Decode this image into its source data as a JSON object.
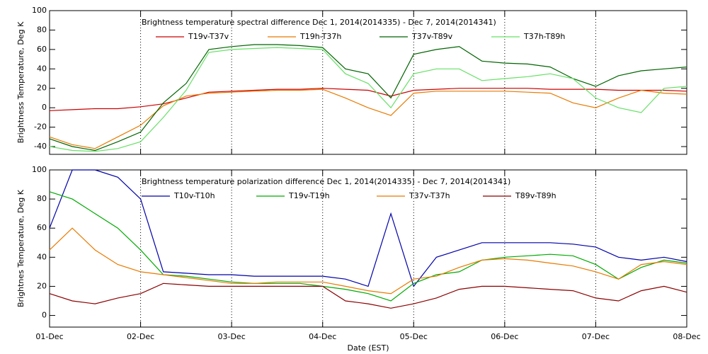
{
  "chart_data": [
    {
      "type": "line",
      "title": "Brightness temperature spectral difference    Dec  1, 2014(2014335) - Dec  7, 2014(2014341)",
      "ylabel": "Brightness Temperature, Deg K",
      "x": [
        0,
        0.25,
        0.5,
        0.75,
        1,
        1.25,
        1.5,
        1.75,
        2,
        2.25,
        2.5,
        2.75,
        3,
        3.25,
        3.5,
        3.75,
        4,
        4.25,
        4.5,
        4.75,
        5,
        5.25,
        5.5,
        5.75,
        6,
        6.25,
        6.5,
        6.75,
        7
      ],
      "xlim": [
        0,
        7
      ],
      "xticks": [
        0,
        1,
        2,
        3,
        4,
        5,
        6,
        7
      ],
      "ylim": [
        -48,
        100
      ],
      "yticks": [
        -40,
        -20,
        0,
        20,
        40,
        60,
        80,
        100
      ],
      "grid": true,
      "legend": "top",
      "series": [
        {
          "name": "T19v-T37v",
          "color": "#cc0000",
          "values": [
            -3,
            -2,
            -1,
            -1,
            1,
            4,
            10,
            16,
            17,
            18,
            19,
            19,
            20,
            19,
            18,
            12,
            18,
            19,
            20,
            20,
            20,
            20,
            19,
            19,
            19,
            18,
            18,
            18,
            17
          ]
        },
        {
          "name": "T19h-T37h",
          "color": "#e87a00",
          "values": [
            -30,
            -38,
            -42,
            -30,
            -18,
            2,
            12,
            15,
            16,
            17,
            18,
            18,
            19,
            10,
            0,
            -8,
            15,
            17,
            17,
            17,
            17,
            16,
            15,
            5,
            0,
            10,
            18,
            15,
            14
          ]
        },
        {
          "name": "T37v-T89v",
          "color": "#006400",
          "values": [
            -32,
            -40,
            -44,
            -35,
            -25,
            5,
            25,
            60,
            63,
            65,
            65,
            64,
            62,
            40,
            35,
            10,
            55,
            60,
            63,
            48,
            46,
            45,
            42,
            30,
            22,
            33,
            38,
            40,
            42
          ]
        },
        {
          "name": "T37h-T89h",
          "color": "#66e066",
          "values": [
            -40,
            -44,
            -45,
            -42,
            -35,
            -10,
            18,
            57,
            60,
            61,
            62,
            61,
            60,
            35,
            25,
            0,
            35,
            40,
            40,
            28,
            30,
            32,
            35,
            30,
            10,
            0,
            -5,
            20,
            22
          ]
        }
      ]
    },
    {
      "type": "line",
      "title": "Brightness temperature polarization difference    Dec  1, 2014(2014335) - Dec  7, 2014(2014341)",
      "ylabel": "Brightnes Temperature, Deg K",
      "xlabel": "Date (EST)",
      "x": [
        0,
        0.25,
        0.5,
        0.75,
        1,
        1.25,
        1.5,
        1.75,
        2,
        2.25,
        2.5,
        2.75,
        3,
        3.25,
        3.5,
        3.75,
        4,
        4.25,
        4.5,
        4.75,
        5,
        5.25,
        5.5,
        5.75,
        6,
        6.25,
        6.5,
        6.75,
        7
      ],
      "xlim": [
        0,
        7
      ],
      "xticks": [
        {
          "value": 0,
          "label": "01-Dec"
        },
        {
          "value": 1,
          "label": "02-Dec"
        },
        {
          "value": 2,
          "label": "03-Dec"
        },
        {
          "value": 3,
          "label": "04-Dec"
        },
        {
          "value": 4,
          "label": "05-Dec"
        },
        {
          "value": 5,
          "label": "06-Dec"
        },
        {
          "value": 6,
          "label": "07-Dec"
        },
        {
          "value": 7,
          "label": "08-Dec"
        }
      ],
      "ylim": [
        -8,
        100
      ],
      "yticks": [
        0,
        20,
        40,
        60,
        80,
        100
      ],
      "grid": true,
      "legend": "top",
      "series": [
        {
          "name": "T10v-T10h",
          "color": "#0000aa",
          "values": [
            60,
            100,
            100,
            95,
            80,
            30,
            29,
            28,
            28,
            27,
            27,
            27,
            27,
            25,
            20,
            70,
            20,
            40,
            45,
            50,
            50,
            50,
            50,
            49,
            47,
            40,
            38,
            40,
            37
          ]
        },
        {
          "name": "T19v-T19h",
          "color": "#00aa00",
          "values": [
            85,
            80,
            70,
            60,
            45,
            28,
            27,
            25,
            23,
            22,
            22,
            22,
            20,
            18,
            15,
            10,
            22,
            28,
            30,
            38,
            40,
            41,
            42,
            41,
            35,
            25,
            33,
            38,
            36
          ]
        },
        {
          "name": "T37v-T37h",
          "color": "#e87a00",
          "values": [
            45,
            60,
            45,
            35,
            30,
            28,
            26,
            24,
            22,
            22,
            23,
            23,
            23,
            20,
            17,
            15,
            25,
            27,
            33,
            38,
            39,
            38,
            36,
            34,
            30,
            25,
            35,
            37,
            35
          ]
        },
        {
          "name": "T89v-T89h",
          "color": "#8b0000",
          "values": [
            15,
            10,
            8,
            12,
            15,
            22,
            21,
            20,
            20,
            20,
            20,
            20,
            20,
            10,
            8,
            5,
            8,
            12,
            18,
            20,
            20,
            19,
            18,
            17,
            12,
            10,
            17,
            20,
            16
          ]
        }
      ]
    }
  ]
}
